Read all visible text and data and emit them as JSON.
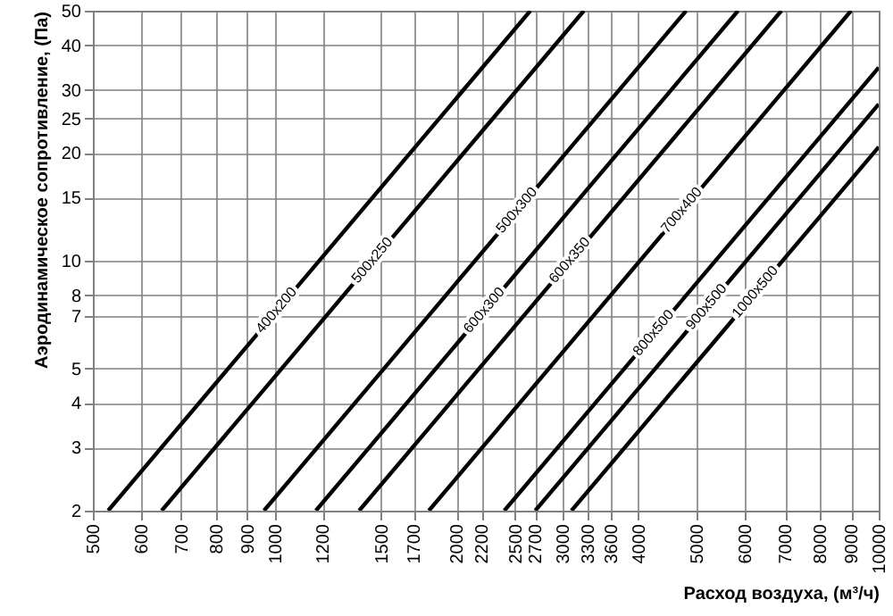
{
  "chart_data": {
    "type": "line",
    "xlabel": "Расход воздуха, (м³/ч)",
    "ylabel": "Аэродинамическое сопротивление, (Па)",
    "log": "xy",
    "grid": true,
    "xlim": [
      500,
      10000
    ],
    "ylim": [
      2,
      50
    ],
    "xticks": [
      500,
      600,
      700,
      800,
      900,
      1000,
      1200,
      1500,
      1700,
      2000,
      2200,
      2500,
      2700,
      3000,
      3300,
      3600,
      4000,
      5000,
      6000,
      7000,
      8000,
      9000,
      10000
    ],
    "yticks": [
      2,
      3,
      4,
      5,
      7,
      8,
      10,
      15,
      20,
      25,
      30,
      40,
      50
    ],
    "series": [
      {
        "name": "400x200",
        "color": "#000000",
        "x": [
          530,
          2650
        ],
        "values": [
          2,
          50
        ]
      },
      {
        "name": "500x250",
        "color": "#000000",
        "x": [
          650,
          3250
        ],
        "values": [
          2,
          50
        ]
      },
      {
        "name": "500x300",
        "color": "#000000",
        "x": [
          960,
          4800
        ],
        "values": [
          2,
          50
        ]
      },
      {
        "name": "600x300",
        "color": "#000000",
        "x": [
          1170,
          5850
        ],
        "values": [
          2,
          50
        ]
      },
      {
        "name": "600x350",
        "color": "#000000",
        "x": [
          1380,
          6900
        ],
        "values": [
          2,
          50
        ]
      },
      {
        "name": "700x400",
        "color": "#000000",
        "x": [
          1800,
          9000
        ],
        "values": [
          2,
          50
        ]
      },
      {
        "name": "800x500",
        "color": "#000000",
        "x": [
          2400,
          10000
        ],
        "values": [
          2,
          34.7
        ]
      },
      {
        "name": "900x500",
        "color": "#000000",
        "x": [
          2700,
          10000
        ],
        "values": [
          2,
          27.4
        ]
      },
      {
        "name": "1000x500",
        "color": "#000000",
        "x": [
          3100,
          10000
        ],
        "values": [
          2,
          20.8
        ]
      }
    ]
  }
}
